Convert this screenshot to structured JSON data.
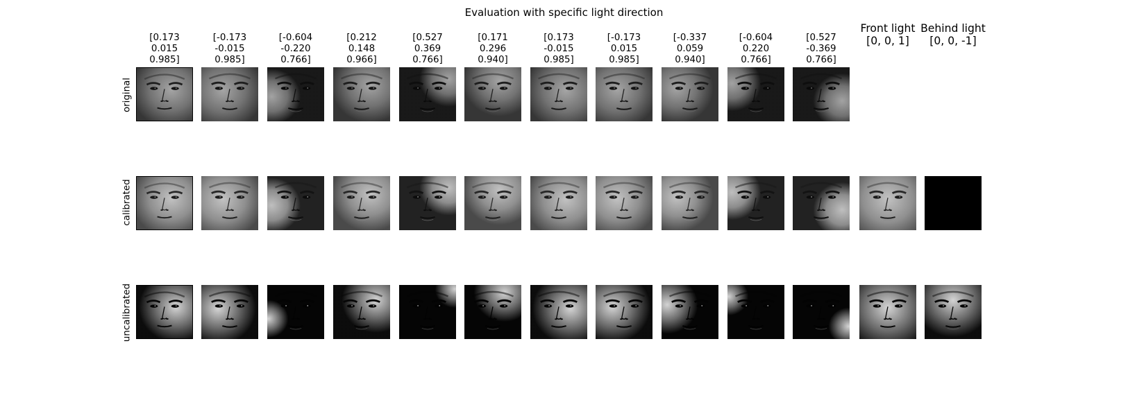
{
  "title": "Evaluation with specific light direction",
  "columns": [
    {
      "label": "[0.173\n0.015\n0.985]"
    },
    {
      "label": "[-0.173\n-0.015\n0.985]"
    },
    {
      "label": "[-0.604\n-0.220\n0.766]"
    },
    {
      "label": "[0.212\n0.148\n0.966]"
    },
    {
      "label": "[0.527\n0.369\n0.766]"
    },
    {
      "label": "[0.171\n0.296\n0.940]"
    },
    {
      "label": "[0.173\n-0.015\n0.985]"
    },
    {
      "label": "[-0.173\n0.015\n0.985]"
    },
    {
      "label": "[-0.337\n0.059\n0.940]"
    },
    {
      "label": "[-0.604\n0.220\n0.766]"
    },
    {
      "label": "[0.527\n-0.369\n0.766]"
    },
    {
      "label": "Front light\n[0, 0, 1]"
    },
    {
      "label": "Behind light\n[0, 0, -1]"
    }
  ],
  "rows": [
    {
      "label": "original"
    },
    {
      "label": "calibrated"
    },
    {
      "label": "uncalibrated"
    }
  ],
  "light_directions": [
    [
      0.173,
      0.015,
      0.985
    ],
    [
      -0.173,
      -0.015,
      0.985
    ],
    [
      -0.604,
      -0.22,
      0.766
    ],
    [
      0.212,
      0.148,
      0.966
    ],
    [
      0.527,
      0.369,
      0.766
    ],
    [
      0.171,
      0.296,
      0.94
    ],
    [
      0.173,
      -0.015,
      0.985
    ],
    [
      -0.173,
      0.015,
      0.985
    ],
    [
      -0.337,
      0.059,
      0.94
    ],
    [
      -0.604,
      0.22,
      0.766
    ],
    [
      0.527,
      -0.369,
      0.766
    ],
    [
      0,
      0,
      1
    ],
    [
      0,
      0,
      -1
    ]
  ],
  "image_grid": {
    "original": [
      "face",
      "face",
      "face",
      "face",
      "face",
      "face",
      "face",
      "face",
      "face",
      "face",
      "face",
      "empty",
      "empty"
    ],
    "calibrated": [
      "face",
      "face",
      "face",
      "face",
      "face",
      "face",
      "face",
      "face",
      "face",
      "face",
      "face",
      "face",
      "black"
    ],
    "uncalibrated": [
      "face",
      "face",
      "face",
      "face",
      "face",
      "face",
      "face",
      "face",
      "face",
      "face",
      "face",
      "face",
      "face"
    ]
  },
  "colors": {
    "background": "#ffffff",
    "text": "#000000"
  }
}
